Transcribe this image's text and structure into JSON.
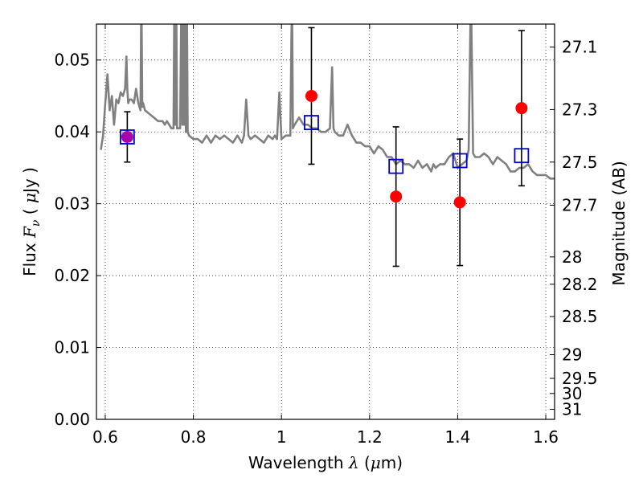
{
  "chart_data": {
    "type": "scatter",
    "xlabel_parts": [
      "Wavelength  ",
      "λ",
      " (",
      "μ",
      "m)"
    ],
    "ylabel_parts": [
      "Flux  ",
      "F",
      "ν",
      "  ( ",
      "μ",
      "Jy )"
    ],
    "y2label": "Magnitude (AB)",
    "xlim": [
      0.58,
      1.62
    ],
    "ylim": [
      0.0,
      0.055
    ],
    "grid": true,
    "x_ticks": [
      0.6,
      0.8,
      1.0,
      1.2,
      1.4,
      1.6
    ],
    "x_tick_labels": [
      "0.6",
      "0.8",
      "1",
      "1.2",
      "1.4",
      "1.6"
    ],
    "y_ticks": [
      0.0,
      0.01,
      0.02,
      0.03,
      0.04,
      0.05
    ],
    "y_tick_labels": [
      "0.00",
      "0.01",
      "0.02",
      "0.03",
      "0.04",
      "0.05"
    ],
    "y2_ticks": [
      {
        "label": "27.1",
        "flux": 0.0518
      },
      {
        "label": "27.3",
        "flux": 0.0431
      },
      {
        "label": "27.5",
        "flux": 0.0358
      },
      {
        "label": "27.7",
        "flux": 0.0298
      },
      {
        "label": "28",
        "flux": 0.0226
      },
      {
        "label": "28.2",
        "flux": 0.0188
      },
      {
        "label": "28.5",
        "flux": 0.0143
      },
      {
        "label": "29",
        "flux": 0.009
      },
      {
        "label": "29.5",
        "flux": 0.0057
      },
      {
        "label": "30",
        "flux": 0.0036
      },
      {
        "label": "31",
        "flux": 0.0014
      }
    ],
    "series": [
      {
        "kind": "model-spectrum",
        "color": "#808080",
        "x": [
          0.59,
          0.595,
          0.6,
          0.605,
          0.61,
          0.615,
          0.62,
          0.625,
          0.63,
          0.635,
          0.64,
          0.645,
          0.648,
          0.65,
          0.652,
          0.655,
          0.66,
          0.665,
          0.67,
          0.675,
          0.68,
          0.682,
          0.684,
          0.686,
          0.69,
          0.7,
          0.71,
          0.72,
          0.73,
          0.735,
          0.74,
          0.745,
          0.75,
          0.755,
          0.757,
          0.759,
          0.761,
          0.763,
          0.77,
          0.773,
          0.775,
          0.777,
          0.779,
          0.781,
          0.783,
          0.785,
          0.787,
          0.79,
          0.8,
          0.81,
          0.82,
          0.83,
          0.84,
          0.85,
          0.86,
          0.87,
          0.88,
          0.89,
          0.9,
          0.91,
          0.915,
          0.92,
          0.925,
          0.93,
          0.94,
          0.95,
          0.96,
          0.97,
          0.98,
          0.985,
          0.99,
          0.995,
          1.0,
          1.01,
          1.02,
          1.024,
          1.026,
          1.03,
          1.04,
          1.05,
          1.06,
          1.07,
          1.08,
          1.09,
          1.1,
          1.11,
          1.115,
          1.118,
          1.121,
          1.13,
          1.14,
          1.15,
          1.16,
          1.17,
          1.18,
          1.19,
          1.2,
          1.21,
          1.22,
          1.23,
          1.24,
          1.25,
          1.26,
          1.27,
          1.28,
          1.29,
          1.3,
          1.31,
          1.32,
          1.33,
          1.34,
          1.345,
          1.35,
          1.36,
          1.37,
          1.38,
          1.39,
          1.4,
          1.41,
          1.42,
          1.425,
          1.43,
          1.435,
          1.44,
          1.45,
          1.46,
          1.47,
          1.48,
          1.49,
          1.5,
          1.51,
          1.52,
          1.53,
          1.54,
          1.55,
          1.56,
          1.57,
          1.58,
          1.59,
          1.6,
          1.61,
          1.62
        ],
        "y": [
          0.0375,
          0.0395,
          0.044,
          0.048,
          0.043,
          0.045,
          0.041,
          0.0445,
          0.044,
          0.0455,
          0.045,
          0.046,
          0.0505,
          0.046,
          0.044,
          0.0445,
          0.0445,
          0.044,
          0.046,
          0.044,
          0.043,
          0.06,
          0.0435,
          0.044,
          0.043,
          0.0425,
          0.042,
          0.0415,
          0.0415,
          0.041,
          0.0415,
          0.041,
          0.0405,
          0.0405,
          0.06,
          0.041,
          0.06,
          0.0405,
          0.0405,
          0.06,
          0.041,
          0.06,
          0.041,
          0.06,
          0.04,
          0.06,
          0.04,
          0.0395,
          0.039,
          0.039,
          0.0385,
          0.0395,
          0.0385,
          0.0395,
          0.039,
          0.0395,
          0.039,
          0.0385,
          0.0395,
          0.0385,
          0.0395,
          0.0445,
          0.0395,
          0.039,
          0.0395,
          0.039,
          0.0385,
          0.0395,
          0.039,
          0.0395,
          0.039,
          0.0455,
          0.039,
          0.0395,
          0.0395,
          0.06,
          0.0405,
          0.041,
          0.042,
          0.041,
          0.041,
          0.0405,
          0.0405,
          0.04,
          0.04,
          0.0405,
          0.049,
          0.0405,
          0.04,
          0.0395,
          0.0395,
          0.041,
          0.0395,
          0.0385,
          0.0385,
          0.038,
          0.038,
          0.037,
          0.038,
          0.0375,
          0.0365,
          0.0365,
          0.0355,
          0.036,
          0.0355,
          0.0355,
          0.035,
          0.036,
          0.035,
          0.0355,
          0.0345,
          0.0355,
          0.035,
          0.0355,
          0.0355,
          0.0365,
          0.037,
          0.035,
          0.0355,
          0.036,
          0.0375,
          0.06,
          0.037,
          0.0365,
          0.0365,
          0.037,
          0.0365,
          0.0355,
          0.0365,
          0.036,
          0.0355,
          0.0345,
          0.0345,
          0.035,
          0.035,
          0.0355,
          0.0345,
          0.034,
          0.034,
          0.034,
          0.0335,
          0.0335
        ]
      },
      {
        "kind": "observed",
        "marker": "circle",
        "color": "#ff0000",
        "x": [
          0.65,
          1.068,
          1.26,
          1.405,
          1.545
        ],
        "y": [
          0.0393,
          0.045,
          0.031,
          0.0302,
          0.0433
        ],
        "yerr_low": [
          0.0035,
          0.0095,
          0.0097,
          0.0088,
          0.0108
        ],
        "yerr_high": [
          0.0035,
          0.0095,
          0.0097,
          0.0088,
          0.0108
        ]
      },
      {
        "kind": "model-photometry",
        "marker": "square-open",
        "color": "#0000cc",
        "x": [
          0.65,
          1.068,
          1.26,
          1.405,
          1.545
        ],
        "y": [
          0.0393,
          0.0413,
          0.0352,
          0.036,
          0.0367
        ]
      }
    ],
    "overlap_color": "#aa00aa"
  }
}
